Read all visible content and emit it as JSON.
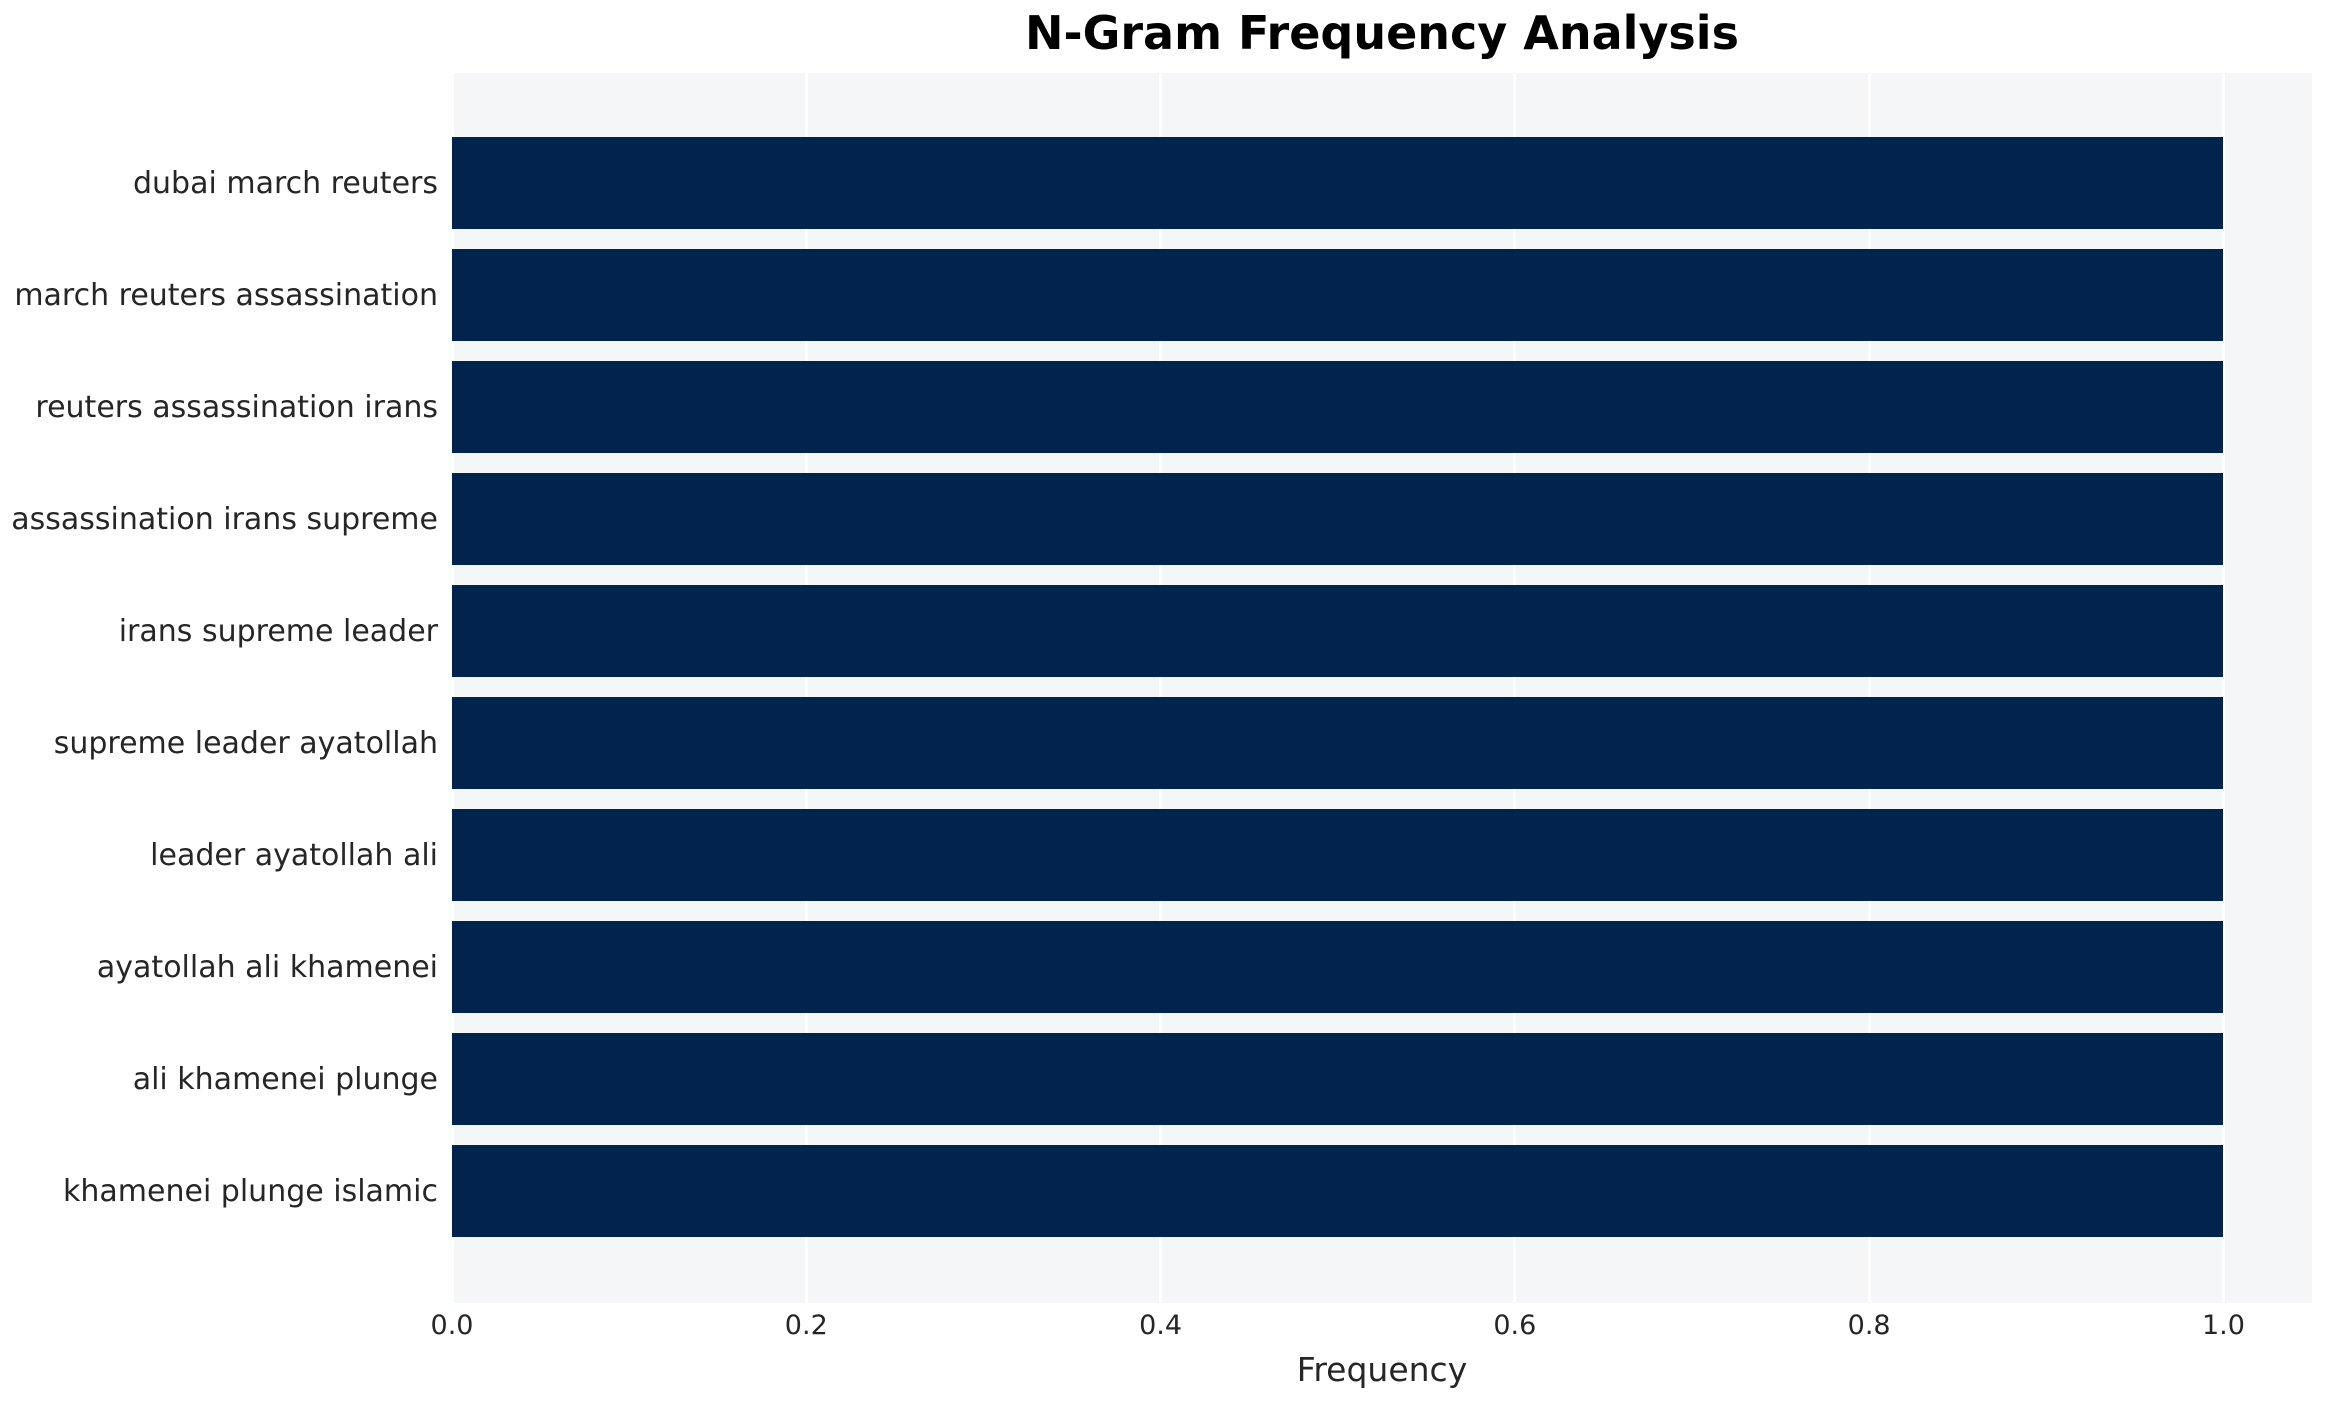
{
  "chart_data": {
    "type": "bar",
    "orientation": "horizontal",
    "title": "N-Gram Frequency Analysis",
    "xlabel": "Frequency",
    "ylabel": "",
    "categories": [
      "dubai march reuters",
      "march reuters assassination",
      "reuters assassination irans",
      "assassination irans supreme",
      "irans supreme leader",
      "supreme leader ayatollah",
      "leader ayatollah ali",
      "ayatollah ali khamenei",
      "ali khamenei plunge",
      "khamenei plunge islamic"
    ],
    "values": [
      1.0,
      1.0,
      1.0,
      1.0,
      1.0,
      1.0,
      1.0,
      1.0,
      1.0,
      1.0
    ],
    "x_ticks": [
      0.0,
      0.2,
      0.4,
      0.6,
      0.8,
      1.0
    ],
    "x_tick_labels": [
      "0.0",
      "0.2",
      "0.4",
      "0.6",
      "0.8",
      "1.0"
    ],
    "xlim": [
      0,
      1.05
    ],
    "grid": "vertical",
    "legend": "none",
    "colors": {
      "bar": "#02234d",
      "plot_background": "#f5f6f7",
      "figure_background": "#ffffff",
      "gridline": "#ffffff",
      "text": "#262626",
      "title": "#000000"
    }
  }
}
